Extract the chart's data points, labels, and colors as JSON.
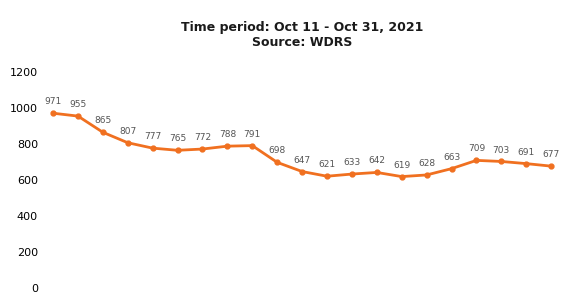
{
  "title_line1": "Time period: Oct 11 - Oct 31, 2021",
  "title_line2": "Source: WDRS",
  "values": [
    971,
    955,
    865,
    807,
    777,
    765,
    772,
    788,
    791,
    698,
    647,
    621,
    633,
    642,
    619,
    628,
    663,
    709,
    703,
    691,
    677
  ],
  "x_indices": [
    0,
    1,
    2,
    3,
    4,
    5,
    6,
    7,
    8,
    9,
    10,
    11,
    12,
    13,
    14,
    15,
    16,
    17,
    18,
    19,
    20
  ],
  "line_color": "#f07020",
  "line_width": 2.0,
  "marker": "o",
  "marker_size": 3.5,
  "ylim": [
    0,
    1300
  ],
  "yticks": [
    0,
    200,
    400,
    600,
    800,
    1000,
    1200
  ],
  "label_fontsize": 6.5,
  "title_fontsize": 9,
  "background_color": "#ffffff",
  "label_color": "#555555"
}
